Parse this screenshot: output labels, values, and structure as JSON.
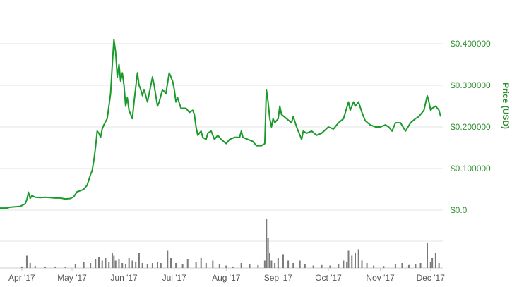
{
  "chart_data": {
    "type": "line",
    "ylabel": "Price (USD)",
    "ylim": [
      0,
      0.4
    ],
    "price_ticks": [
      {
        "value": 0,
        "label": "$0.0"
      },
      {
        "value": 0.1,
        "label": "$0.100000"
      },
      {
        "value": 0.2,
        "label": "$0.200000"
      },
      {
        "value": 0.3,
        "label": "$0.300000"
      },
      {
        "value": 0.4,
        "label": "$0.400000"
      }
    ],
    "x_range": [
      "2017-03-19",
      "2017-12-07"
    ],
    "x_ticks": [
      {
        "date": "2017-04-01",
        "label": "Apr '17"
      },
      {
        "date": "2017-05-01",
        "label": "May '17"
      },
      {
        "date": "2017-06-01",
        "label": "Jun '17"
      },
      {
        "date": "2017-07-01",
        "label": "Jul '17"
      },
      {
        "date": "2017-08-01",
        "label": "Aug '17"
      },
      {
        "date": "2017-09-01",
        "label": "Sep '17"
      },
      {
        "date": "2017-10-01",
        "label": "Oct '17"
      },
      {
        "date": "2017-11-01",
        "label": "Nov '17"
      },
      {
        "date": "2017-12-01",
        "label": "Dec '17"
      }
    ],
    "grid": true,
    "colors": {
      "price_line": "#1a9a2a",
      "volume_bar": "#7a7a7a",
      "grid": "#e6e6e6",
      "axis_text": "#2c8f2c"
    },
    "series": [
      {
        "kind": "price",
        "points": [
          [
            "2017-03-19",
            0.005
          ],
          [
            "2017-03-23",
            0.005
          ],
          [
            "2017-03-25",
            0.007
          ],
          [
            "2017-03-28",
            0.008
          ],
          [
            "2017-03-31",
            0.009
          ],
          [
            "2017-04-03",
            0.015
          ],
          [
            "2017-04-04",
            0.025
          ],
          [
            "2017-04-05",
            0.043
          ],
          [
            "2017-04-06",
            0.028
          ],
          [
            "2017-04-07",
            0.035
          ],
          [
            "2017-04-09",
            0.031
          ],
          [
            "2017-04-12",
            0.03
          ],
          [
            "2017-04-15",
            0.031
          ],
          [
            "2017-04-18",
            0.03
          ],
          [
            "2017-04-21",
            0.029
          ],
          [
            "2017-04-24",
            0.029
          ],
          [
            "2017-04-27",
            0.027
          ],
          [
            "2017-04-30",
            0.028
          ],
          [
            "2017-05-02",
            0.032
          ],
          [
            "2017-05-04",
            0.044
          ],
          [
            "2017-05-06",
            0.047
          ],
          [
            "2017-05-08",
            0.05
          ],
          [
            "2017-05-10",
            0.06
          ],
          [
            "2017-05-12",
            0.085
          ],
          [
            "2017-05-13",
            0.095
          ],
          [
            "2017-05-14",
            0.12
          ],
          [
            "2017-05-15",
            0.15
          ],
          [
            "2017-05-16",
            0.19
          ],
          [
            "2017-05-17",
            0.185
          ],
          [
            "2017-05-18",
            0.175
          ],
          [
            "2017-05-19",
            0.195
          ],
          [
            "2017-05-20",
            0.205
          ],
          [
            "2017-05-22",
            0.22
          ],
          [
            "2017-05-24",
            0.28
          ],
          [
            "2017-05-25",
            0.35
          ],
          [
            "2017-05-26",
            0.41
          ],
          [
            "2017-05-27",
            0.38
          ],
          [
            "2017-05-28",
            0.32
          ],
          [
            "2017-05-29",
            0.35
          ],
          [
            "2017-05-30",
            0.31
          ],
          [
            "2017-05-31",
            0.33
          ],
          [
            "2017-06-01",
            0.3
          ],
          [
            "2017-06-02",
            0.25
          ],
          [
            "2017-06-03",
            0.27
          ],
          [
            "2017-06-04",
            0.24
          ],
          [
            "2017-06-06",
            0.22
          ],
          [
            "2017-06-07",
            0.26
          ],
          [
            "2017-06-09",
            0.33
          ],
          [
            "2017-06-10",
            0.3
          ],
          [
            "2017-06-11",
            0.29
          ],
          [
            "2017-06-12",
            0.275
          ],
          [
            "2017-06-13",
            0.29
          ],
          [
            "2017-06-15",
            0.26
          ],
          [
            "2017-06-16",
            0.28
          ],
          [
            "2017-06-18",
            0.32
          ],
          [
            "2017-06-19",
            0.3
          ],
          [
            "2017-06-21",
            0.25
          ],
          [
            "2017-06-22",
            0.26
          ],
          [
            "2017-06-24",
            0.29
          ],
          [
            "2017-06-26",
            0.28
          ],
          [
            "2017-06-28",
            0.33
          ],
          [
            "2017-06-30",
            0.31
          ],
          [
            "2017-07-01",
            0.29
          ],
          [
            "2017-07-02",
            0.26
          ],
          [
            "2017-07-03",
            0.27
          ],
          [
            "2017-07-05",
            0.245
          ],
          [
            "2017-07-08",
            0.245
          ],
          [
            "2017-07-10",
            0.235
          ],
          [
            "2017-07-12",
            0.24
          ],
          [
            "2017-07-13",
            0.23
          ],
          [
            "2017-07-14",
            0.2
          ],
          [
            "2017-07-15",
            0.18
          ],
          [
            "2017-07-17",
            0.19
          ],
          [
            "2017-07-18",
            0.175
          ],
          [
            "2017-07-20",
            0.17
          ],
          [
            "2017-07-21",
            0.185
          ],
          [
            "2017-07-23",
            0.19
          ],
          [
            "2017-07-25",
            0.17
          ],
          [
            "2017-07-27",
            0.18
          ],
          [
            "2017-07-29",
            0.17
          ],
          [
            "2017-08-01",
            0.16
          ],
          [
            "2017-08-03",
            0.17
          ],
          [
            "2017-08-06",
            0.175
          ],
          [
            "2017-08-09",
            0.175
          ],
          [
            "2017-08-10",
            0.19
          ],
          [
            "2017-08-11",
            0.175
          ],
          [
            "2017-08-14",
            0.17
          ],
          [
            "2017-08-17",
            0.165
          ],
          [
            "2017-08-19",
            0.155
          ],
          [
            "2017-08-22",
            0.155
          ],
          [
            "2017-08-24",
            0.16
          ],
          [
            "2017-08-25",
            0.29
          ],
          [
            "2017-08-26",
            0.26
          ],
          [
            "2017-08-27",
            0.22
          ],
          [
            "2017-08-28",
            0.2
          ],
          [
            "2017-08-29",
            0.22
          ],
          [
            "2017-08-30",
            0.21
          ],
          [
            "2017-09-01",
            0.22
          ],
          [
            "2017-09-02",
            0.25
          ],
          [
            "2017-09-03",
            0.23
          ],
          [
            "2017-09-06",
            0.22
          ],
          [
            "2017-09-09",
            0.21
          ],
          [
            "2017-09-10",
            0.225
          ],
          [
            "2017-09-12",
            0.2
          ],
          [
            "2017-09-14",
            0.18
          ],
          [
            "2017-09-15",
            0.17
          ],
          [
            "2017-09-16",
            0.19
          ],
          [
            "2017-09-18",
            0.185
          ],
          [
            "2017-09-21",
            0.19
          ],
          [
            "2017-09-24",
            0.18
          ],
          [
            "2017-09-27",
            0.185
          ],
          [
            "2017-10-01",
            0.2
          ],
          [
            "2017-10-04",
            0.195
          ],
          [
            "2017-10-07",
            0.21
          ],
          [
            "2017-10-10",
            0.22
          ],
          [
            "2017-10-13",
            0.26
          ],
          [
            "2017-10-14",
            0.24
          ],
          [
            "2017-10-16",
            0.26
          ],
          [
            "2017-10-17",
            0.25
          ],
          [
            "2017-10-19",
            0.26
          ],
          [
            "2017-10-21",
            0.235
          ],
          [
            "2017-10-23",
            0.215
          ],
          [
            "2017-10-26",
            0.205
          ],
          [
            "2017-10-29",
            0.2
          ],
          [
            "2017-11-01",
            0.2
          ],
          [
            "2017-11-04",
            0.205
          ],
          [
            "2017-11-06",
            0.2
          ],
          [
            "2017-11-08",
            0.19
          ],
          [
            "2017-11-10",
            0.21
          ],
          [
            "2017-11-13",
            0.21
          ],
          [
            "2017-11-16",
            0.19
          ],
          [
            "2017-11-19",
            0.21
          ],
          [
            "2017-11-22",
            0.22
          ],
          [
            "2017-11-24",
            0.225
          ],
          [
            "2017-11-27",
            0.24
          ],
          [
            "2017-11-29",
            0.275
          ],
          [
            "2017-11-30",
            0.26
          ],
          [
            "2017-12-01",
            0.24
          ],
          [
            "2017-12-02",
            0.245
          ],
          [
            "2017-12-04",
            0.25
          ],
          [
            "2017-12-06",
            0.24
          ],
          [
            "2017-12-07",
            0.225
          ]
        ]
      },
      {
        "kind": "volume",
        "bars": [
          [
            "2017-04-01",
            0.03
          ],
          [
            "2017-04-04",
            0.25
          ],
          [
            "2017-04-06",
            0.1
          ],
          [
            "2017-04-09",
            0.04
          ],
          [
            "2017-04-15",
            0.03
          ],
          [
            "2017-04-21",
            0.03
          ],
          [
            "2017-04-27",
            0.02
          ],
          [
            "2017-05-03",
            0.08
          ],
          [
            "2017-05-08",
            0.12
          ],
          [
            "2017-05-12",
            0.1
          ],
          [
            "2017-05-15",
            0.18
          ],
          [
            "2017-05-17",
            0.22
          ],
          [
            "2017-05-19",
            0.15
          ],
          [
            "2017-05-21",
            0.2
          ],
          [
            "2017-05-23",
            0.12
          ],
          [
            "2017-05-25",
            0.3
          ],
          [
            "2017-05-26",
            0.25
          ],
          [
            "2017-05-27",
            0.15
          ],
          [
            "2017-05-29",
            0.18
          ],
          [
            "2017-05-31",
            0.1
          ],
          [
            "2017-06-02",
            0.08
          ],
          [
            "2017-06-04",
            0.2
          ],
          [
            "2017-06-06",
            0.15
          ],
          [
            "2017-06-08",
            0.12
          ],
          [
            "2017-06-10",
            0.3
          ],
          [
            "2017-06-12",
            0.1
          ],
          [
            "2017-06-15",
            0.08
          ],
          [
            "2017-06-18",
            0.1
          ],
          [
            "2017-06-21",
            0.12
          ],
          [
            "2017-06-23",
            0.1
          ],
          [
            "2017-06-27",
            0.35
          ],
          [
            "2017-06-29",
            0.2
          ],
          [
            "2017-07-02",
            0.1
          ],
          [
            "2017-07-06",
            0.08
          ],
          [
            "2017-07-09",
            0.18
          ],
          [
            "2017-07-14",
            0.12
          ],
          [
            "2017-07-17",
            0.2
          ],
          [
            "2017-07-20",
            0.1
          ],
          [
            "2017-07-24",
            0.15
          ],
          [
            "2017-07-28",
            0.08
          ],
          [
            "2017-08-01",
            0.05
          ],
          [
            "2017-08-05",
            0.03
          ],
          [
            "2017-08-10",
            0.1
          ],
          [
            "2017-08-15",
            0.08
          ],
          [
            "2017-08-20",
            0.06
          ],
          [
            "2017-08-24",
            0.15
          ],
          [
            "2017-08-25",
            1.0
          ],
          [
            "2017-08-26",
            0.6
          ],
          [
            "2017-08-27",
            0.3
          ],
          [
            "2017-08-28",
            0.15
          ],
          [
            "2017-08-30",
            0.1
          ],
          [
            "2017-09-01",
            0.2
          ],
          [
            "2017-09-04",
            0.28
          ],
          [
            "2017-09-07",
            0.15
          ],
          [
            "2017-09-10",
            0.1
          ],
          [
            "2017-09-14",
            0.15
          ],
          [
            "2017-09-17",
            0.08
          ],
          [
            "2017-09-22",
            0.05
          ],
          [
            "2017-09-27",
            0.06
          ],
          [
            "2017-10-02",
            0.05
          ],
          [
            "2017-10-07",
            0.08
          ],
          [
            "2017-10-10",
            0.15
          ],
          [
            "2017-10-12",
            0.12
          ],
          [
            "2017-10-13",
            0.35
          ],
          [
            "2017-10-15",
            0.25
          ],
          [
            "2017-10-17",
            0.3
          ],
          [
            "2017-10-19",
            0.38
          ],
          [
            "2017-10-21",
            0.15
          ],
          [
            "2017-10-24",
            0.1
          ],
          [
            "2017-10-28",
            0.05
          ],
          [
            "2017-11-03",
            0.04
          ],
          [
            "2017-11-10",
            0.08
          ],
          [
            "2017-11-14",
            0.1
          ],
          [
            "2017-11-18",
            0.06
          ],
          [
            "2017-11-22",
            0.08
          ],
          [
            "2017-11-25",
            0.1
          ],
          [
            "2017-11-29",
            0.5
          ],
          [
            "2017-12-01",
            0.12
          ],
          [
            "2017-12-02",
            0.2
          ],
          [
            "2017-12-04",
            0.3
          ],
          [
            "2017-12-06",
            0.1
          ]
        ]
      }
    ]
  }
}
